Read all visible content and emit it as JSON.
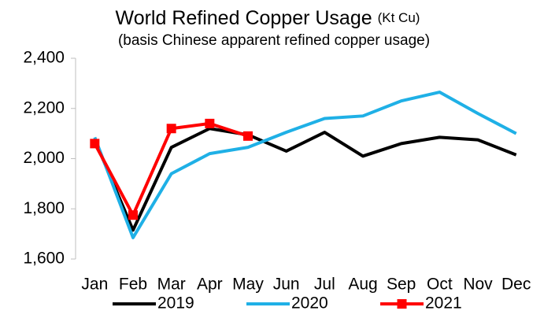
{
  "chart_data": {
    "type": "line",
    "title": "World Refined Copper Usage",
    "unit": "(Kt Cu)",
    "subtitle": "(basis Chinese apparent refined copper usage)",
    "categories": [
      "Jan",
      "Feb",
      "Mar",
      "Apr",
      "May",
      "Jun",
      "Jul",
      "Aug",
      "Sep",
      "Oct",
      "Nov",
      "Dec"
    ],
    "series": [
      {
        "name": "2019",
        "color": "#000000",
        "values": [
          2075,
          1715,
          2045,
          2120,
          2095,
          2030,
          2105,
          2010,
          2060,
          2085,
          2075,
          2015
        ]
      },
      {
        "name": "2020",
        "color": "#1fb0e6",
        "values": [
          2085,
          1685,
          1940,
          2020,
          2045,
          2105,
          2160,
          2170,
          2230,
          2265,
          2180,
          2100
        ]
      },
      {
        "name": "2021",
        "color": "#ff0000",
        "marker": "square",
        "values": [
          2060,
          1775,
          2120,
          2140,
          2090,
          null,
          null,
          null,
          null,
          null,
          null,
          null
        ]
      }
    ],
    "ylim": [
      1600,
      2400
    ],
    "yticks": [
      {
        "value": 1600,
        "label": "1,600"
      },
      {
        "value": 1800,
        "label": "1,800"
      },
      {
        "value": 2000,
        "label": "2,000"
      },
      {
        "value": 2200,
        "label": "2,200"
      },
      {
        "value": 2400,
        "label": "2,400"
      }
    ],
    "grid": false,
    "legend": "bottom"
  }
}
